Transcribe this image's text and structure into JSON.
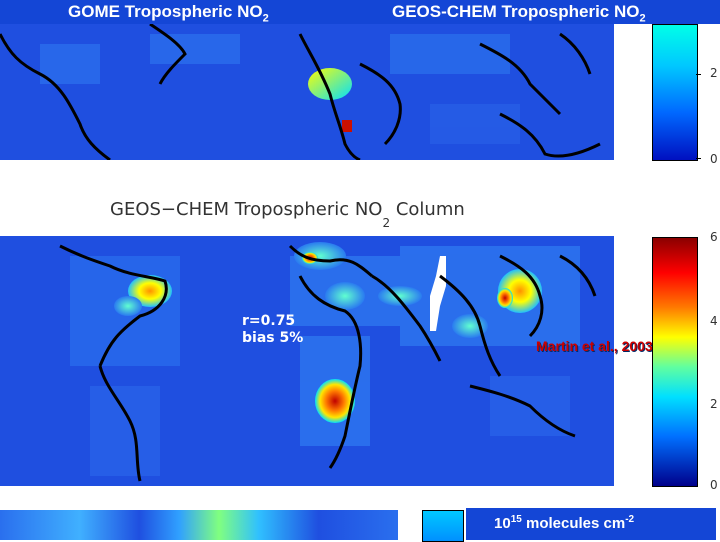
{
  "top_left_title": {
    "text": "GOME Tropospheric NO",
    "subscript": "2"
  },
  "top_right_title": {
    "text": "GEOS-CHEM Tropospheric NO",
    "subscript": "2"
  },
  "lower_panel_title": {
    "prefix": "GEOS−CHEM Tropospheric NO",
    "subscript": "2",
    "suffix": " Column"
  },
  "stats": {
    "correlation": "r=0.75",
    "bias": "bias 5%"
  },
  "citation": "Martin et al., 2003",
  "units": {
    "base": "10",
    "exponent": "15",
    "label": " molecules cm",
    "label_exponent": "-2"
  },
  "top_colorbar_ticks": [
    "2",
    "0"
  ],
  "lower_colorbar_ticks": [
    "6",
    "4",
    "2",
    "0"
  ],
  "colors": {
    "background_map": "#1f4fe0",
    "land_outline": "#000000",
    "scale_high": "#8b0000",
    "scale_low": "#00008b",
    "title_bar": "#1446d6"
  }
}
